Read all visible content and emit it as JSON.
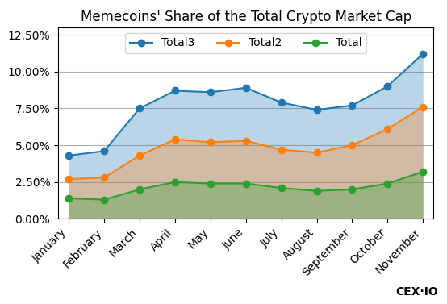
{
  "chart_data": {
    "type": "area",
    "title": "Memecoins' Share of the Total Crypto Market Cap",
    "categories": [
      "January",
      "February",
      "March",
      "April",
      "May",
      "June",
      "July",
      "August",
      "September",
      "October",
      "November"
    ],
    "series": [
      {
        "name": "Total3",
        "values": [
          4.3,
          4.6,
          7.5,
          8.7,
          8.6,
          8.9,
          7.9,
          7.4,
          7.7,
          9.0,
          11.2
        ]
      },
      {
        "name": "Total2",
        "values": [
          2.7,
          2.8,
          4.3,
          5.4,
          5.2,
          5.3,
          4.7,
          4.5,
          5.0,
          6.1,
          7.6
        ]
      },
      {
        "name": "Total",
        "values": [
          1.4,
          1.3,
          2.0,
          2.5,
          2.4,
          2.4,
          2.1,
          1.9,
          2.0,
          2.4,
          3.2
        ]
      }
    ],
    "stacked": false,
    "marker": "o",
    "ylim": [
      0,
      13.0
    ],
    "yticks": [
      {
        "value": 0.0,
        "label": "0.00%"
      },
      {
        "value": 2.5,
        "label": "2.50%"
      },
      {
        "value": 5.0,
        "label": "5.00%"
      },
      {
        "value": 7.5,
        "label": "7.50%"
      },
      {
        "value": 10.0,
        "label": "10.00%"
      },
      {
        "value": 12.5,
        "label": "12.50%"
      }
    ],
    "grid": true,
    "legend": "upper center",
    "annotations": [
      "CEX·IO"
    ]
  }
}
